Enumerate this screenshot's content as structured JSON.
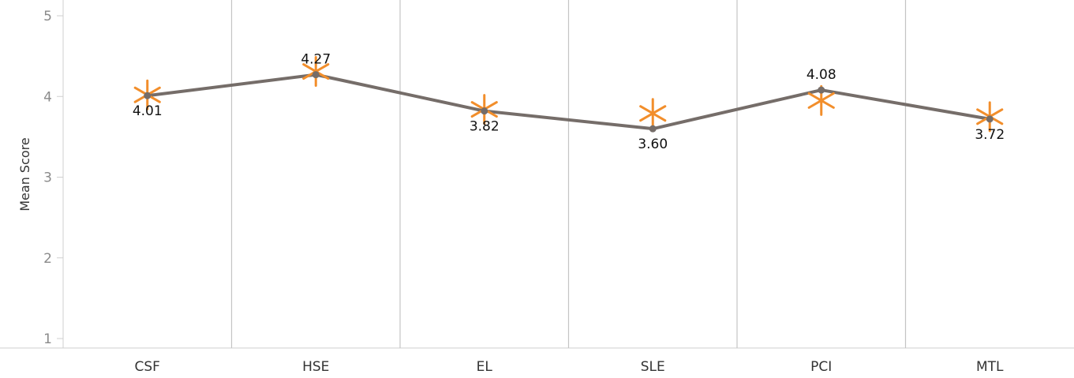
{
  "chart_data": {
    "type": "line",
    "categories": [
      "CSF",
      "HSE",
      "EL",
      "SLE",
      "PCI",
      "MTL"
    ],
    "ylabel": "Mean Score",
    "ylim": [
      1,
      5
    ],
    "yticks": [
      1,
      2,
      3,
      4,
      5
    ],
    "grid": "vertical category separators",
    "series": [
      {
        "values": [
          4.01,
          4.27,
          3.82,
          3.6,
          4.08,
          3.72
        ],
        "labels": [
          "4.01",
          "4.27",
          "3.82",
          "3.60",
          "4.08",
          "3.72"
        ],
        "color": "#756d69",
        "marker": "dot"
      },
      {
        "values": [
          4.02,
          4.31,
          3.84,
          3.79,
          3.95,
          3.75
        ],
        "color": "#f28e2b",
        "marker": "asterisk"
      }
    ]
  }
}
